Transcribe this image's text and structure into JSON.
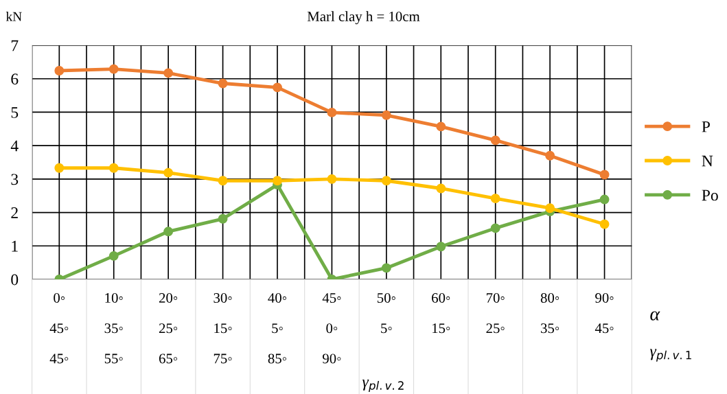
{
  "chart_data": {
    "type": "line",
    "title": "Marl clay h = 10cm",
    "ylabel": "kN",
    "categories": [
      "0◦\n45◦\n45◦",
      "10◦\n35◦\n55◦",
      "20◦\n25◦\n65◦",
      "30◦\n15◦\n75◦",
      "40◦\n5◦\n85◦",
      "45◦\n0◦\n90◦",
      "50◦\n5◦",
      "60◦\n15◦",
      "70◦\n25◦",
      "80◦\n35◦",
      "90◦\n45◦"
    ],
    "series": [
      {
        "name": "P",
        "color": "#ed7d31",
        "values": [
          6.24,
          6.29,
          6.17,
          5.86,
          5.74,
          4.99,
          4.91,
          4.57,
          4.16,
          3.7,
          3.13
        ]
      },
      {
        "name": "N",
        "color": "#ffc000",
        "values": [
          3.33,
          3.33,
          3.19,
          2.95,
          2.95,
          3.0,
          2.95,
          2.72,
          2.42,
          2.13,
          1.65
        ]
      },
      {
        "name": "Po",
        "color": "#70ad47",
        "values": [
          0,
          0.7,
          1.43,
          1.81,
          2.83,
          0,
          0.34,
          0.98,
          1.53,
          2.03,
          2.39
        ]
      }
    ],
    "ylim": [
      0,
      7
    ],
    "yticks": [
      0,
      1,
      2,
      3,
      4,
      5,
      6,
      7
    ],
    "grid": true,
    "legend": "right",
    "marker": "circle",
    "line_style": "solid",
    "annotations": [
      "α",
      "γ$_{pl.v.1}$",
      "γ$_{pl.v.2}$"
    ]
  }
}
